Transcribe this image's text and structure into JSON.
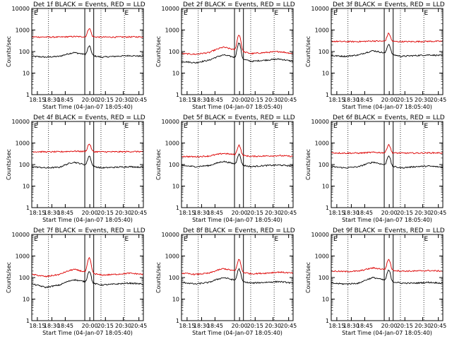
{
  "figure": {
    "xlabel": "Start Time (04-Jan-07 18:05:40)",
    "ylabel": "Counts/sec",
    "legend_text": "BLACK = Events, RED = LLD",
    "x_ticks": [
      "18:15",
      "18:30",
      "18:45",
      "20:00",
      "20:15",
      "20:30",
      "20:45"
    ],
    "y_ticks": [
      "1",
      "10",
      "100",
      "1000",
      "10000"
    ],
    "markers": [
      "E",
      "E"
    ],
    "colors": {
      "events": "#000000",
      "lld": "#dd0000"
    }
  },
  "chart_data": [
    {
      "type": "line",
      "title": "Det 1f BLACK = Events, RED = LLD",
      "yscale": "log",
      "ylim": [
        1,
        10000
      ],
      "x_range": [
        "18:08",
        "20:48"
      ],
      "grid": "dotted vertical lines at orbit boundaries",
      "series": [
        {
          "name": "Events",
          "color": "#000000",
          "base": [
            60,
            55,
            60,
            90,
            70,
            55,
            60,
            65,
            60
          ],
          "peak": 180
        },
        {
          "name": "LLD",
          "color": "#dd0000",
          "base": [
            480,
            470,
            470,
            500,
            480,
            470,
            470,
            480,
            480
          ],
          "peak": 1200
        }
      ]
    },
    {
      "type": "line",
      "title": "Det 2f BLACK = Events, RED = LLD",
      "yscale": "log",
      "ylim": [
        1,
        10000
      ],
      "x_range": [
        "18:08",
        "20:48"
      ],
      "series": [
        {
          "name": "Events",
          "color": "#000000",
          "base": [
            35,
            30,
            40,
            70,
            50,
            35,
            40,
            45,
            35
          ],
          "peak": 250
        },
        {
          "name": "LLD",
          "color": "#dd0000",
          "base": [
            80,
            75,
            90,
            160,
            110,
            80,
            90,
            100,
            80
          ],
          "peak": 600
        }
      ]
    },
    {
      "type": "line",
      "title": "Det 3f BLACK = Events, RED = LLD",
      "yscale": "log",
      "ylim": [
        1,
        10000
      ],
      "x_range": [
        "18:08",
        "20:48"
      ],
      "series": [
        {
          "name": "Events",
          "color": "#000000",
          "base": [
            65,
            60,
            70,
            110,
            80,
            60,
            65,
            70,
            65
          ],
          "peak": 220
        },
        {
          "name": "LLD",
          "color": "#dd0000",
          "base": [
            300,
            290,
            290,
            310,
            300,
            290,
            290,
            300,
            300
          ],
          "peak": 700
        }
      ]
    },
    {
      "type": "line",
      "title": "Det 4f BLACK = Events, RED = LLD",
      "yscale": "log",
      "ylim": [
        1,
        10000
      ],
      "x_range": [
        "18:08",
        "20:48"
      ],
      "series": [
        {
          "name": "Events",
          "color": "#000000",
          "base": [
            80,
            70,
            75,
            130,
            90,
            70,
            75,
            80,
            75
          ],
          "peak": 250
        },
        {
          "name": "LLD",
          "color": "#dd0000",
          "base": [
            400,
            390,
            390,
            420,
            400,
            390,
            390,
            400,
            400
          ],
          "peak": 900
        }
      ]
    },
    {
      "type": "line",
      "title": "Det 5f BLACK = Events, RED = LLD",
      "yscale": "log",
      "ylim": [
        1,
        10000
      ],
      "x_range": [
        "18:08",
        "20:48"
      ],
      "series": [
        {
          "name": "Events",
          "color": "#000000",
          "base": [
            90,
            80,
            90,
            140,
            100,
            80,
            90,
            95,
            85
          ],
          "peak": 300
        },
        {
          "name": "LLD",
          "color": "#dd0000",
          "base": [
            240,
            230,
            250,
            330,
            280,
            240,
            250,
            260,
            240
          ],
          "peak": 800
        }
      ]
    },
    {
      "type": "line",
      "title": "Det 6f BLACK = Events, RED = LLD",
      "yscale": "log",
      "ylim": [
        1,
        10000
      ],
      "x_range": [
        "18:08",
        "20:48"
      ],
      "series": [
        {
          "name": "Events",
          "color": "#000000",
          "base": [
            80,
            70,
            80,
            130,
            90,
            70,
            80,
            85,
            75
          ],
          "peak": 260
        },
        {
          "name": "LLD",
          "color": "#dd0000",
          "base": [
            350,
            340,
            340,
            370,
            350,
            340,
            340,
            350,
            350
          ],
          "peak": 850
        }
      ]
    },
    {
      "type": "line",
      "title": "Det 7f BLACK = Events, RED = LLD",
      "yscale": "log",
      "ylim": [
        1,
        10000
      ],
      "x_range": [
        "18:08",
        "20:48"
      ],
      "series": [
        {
          "name": "Events",
          "color": "#000000",
          "base": [
            50,
            35,
            45,
            80,
            60,
            45,
            50,
            55,
            50
          ],
          "peak": 200
        },
        {
          "name": "LLD",
          "color": "#dd0000",
          "base": [
            140,
            110,
            140,
            240,
            170,
            130,
            140,
            160,
            140
          ],
          "peak": 800
        }
      ]
    },
    {
      "type": "line",
      "title": "Det 8f BLACK = Events, RED = LLD",
      "yscale": "log",
      "ylim": [
        1,
        10000
      ],
      "x_range": [
        "18:08",
        "20:48"
      ],
      "series": [
        {
          "name": "Events",
          "color": "#000000",
          "base": [
            60,
            50,
            60,
            100,
            70,
            55,
            60,
            65,
            55
          ],
          "peak": 250
        },
        {
          "name": "LLD",
          "color": "#dd0000",
          "base": [
            160,
            140,
            160,
            260,
            190,
            150,
            160,
            180,
            160
          ],
          "peak": 700
        }
      ]
    },
    {
      "type": "line",
      "title": "Det 9f BLACK = Events, RED = LLD",
      "yscale": "log",
      "ylim": [
        1,
        10000
      ],
      "x_range": [
        "18:08",
        "20:48"
      ],
      "series": [
        {
          "name": "Events",
          "color": "#000000",
          "base": [
            55,
            50,
            55,
            100,
            70,
            55,
            55,
            60,
            55
          ],
          "peak": 220
        },
        {
          "name": "LLD",
          "color": "#dd0000",
          "base": [
            200,
            190,
            200,
            280,
            230,
            200,
            200,
            210,
            200
          ],
          "peak": 700
        }
      ]
    }
  ]
}
